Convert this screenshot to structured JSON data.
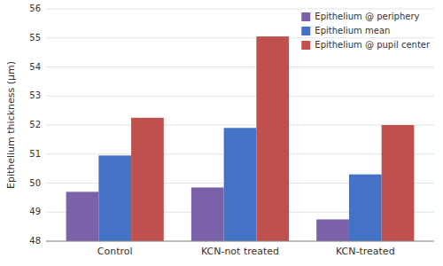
{
  "chart_data": {
    "type": "bar",
    "categories": [
      "Control",
      "KCN-not treated",
      "KCN-treated"
    ],
    "series": [
      {
        "name": "Epithelium @ periphery",
        "color": "#7B62A8",
        "values": [
          49.7,
          49.85,
          48.75
        ]
      },
      {
        "name": "Epithelium mean",
        "color": "#4472C4",
        "values": [
          50.95,
          51.9,
          50.3
        ]
      },
      {
        "name": "Epithelium @ pupil center",
        "color": "#C0504D",
        "values": [
          52.25,
          55.05,
          52.0
        ]
      }
    ],
    "ylabel": "Epithelium thickness (μm)",
    "ylim": [
      48.0,
      56.0
    ],
    "yticks": [
      48.0,
      49.0,
      50.0,
      51.0,
      52.0,
      53.0,
      54.0,
      55.0,
      56.0
    ],
    "grid": true,
    "legend": "upper right"
  }
}
